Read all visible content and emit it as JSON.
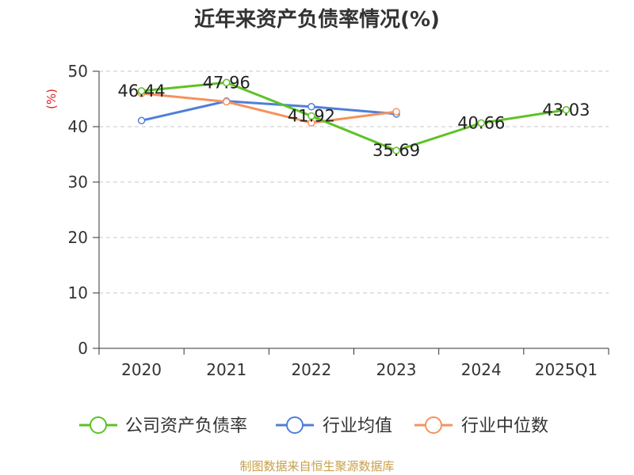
{
  "chart_data": {
    "type": "line",
    "title": "近年来资产负债率情况(%)",
    "ylabel": "(%)",
    "categories": [
      "2020",
      "2021",
      "2022",
      "2023",
      "2024",
      "2025Q1"
    ],
    "ylim": [
      0,
      50
    ],
    "yticks": [
      0,
      10,
      20,
      30,
      40,
      50
    ],
    "grid": true,
    "legend_position": "bottom",
    "series": [
      {
        "name": "公司资产负债率",
        "color": "#5ec226",
        "values": [
          46.44,
          47.96,
          41.92,
          35.69,
          40.66,
          43.03
        ],
        "labels": [
          "46.44",
          "47.96",
          "41.92",
          "35.69",
          "40.66",
          "43.03"
        ]
      },
      {
        "name": "行业均值",
        "color": "#4f7fd8",
        "values": [
          41.1,
          44.6,
          43.6,
          42.3,
          null,
          null
        ]
      },
      {
        "name": "行业中位数",
        "color": "#f5925d",
        "values": [
          46.0,
          44.5,
          40.7,
          42.7,
          null,
          null
        ]
      }
    ],
    "source": "制图数据来自恒生聚源数据库"
  }
}
